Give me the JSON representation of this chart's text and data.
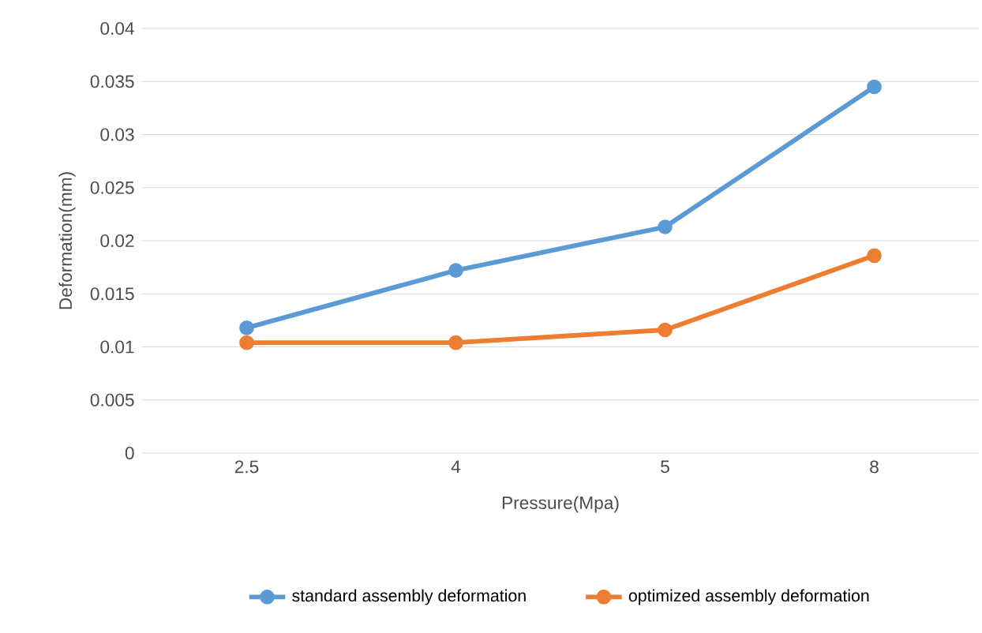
{
  "chart_data": {
    "type": "line",
    "xlabel": "Pressure(Mpa)",
    "ylabel": "Deformation(mm)",
    "categories": [
      "2.5",
      "4",
      "5",
      "8"
    ],
    "series": [
      {
        "name": "standard assembly deformation",
        "color": "#5b9bd5",
        "values": [
          0.0118,
          0.0172,
          0.0213,
          0.0345
        ]
      },
      {
        "name": "optimized assembly deformation",
        "color": "#ed7d31",
        "values": [
          0.0104,
          0.0104,
          0.0116,
          0.0186
        ]
      }
    ],
    "ylim": [
      0,
      0.04
    ],
    "yticks": [
      0,
      0.005,
      0.01,
      0.015,
      0.02,
      0.025,
      0.03,
      0.035,
      0.04
    ],
    "grid": "y",
    "legend": "bottom",
    "marker": "circle",
    "line_style": "solid"
  }
}
